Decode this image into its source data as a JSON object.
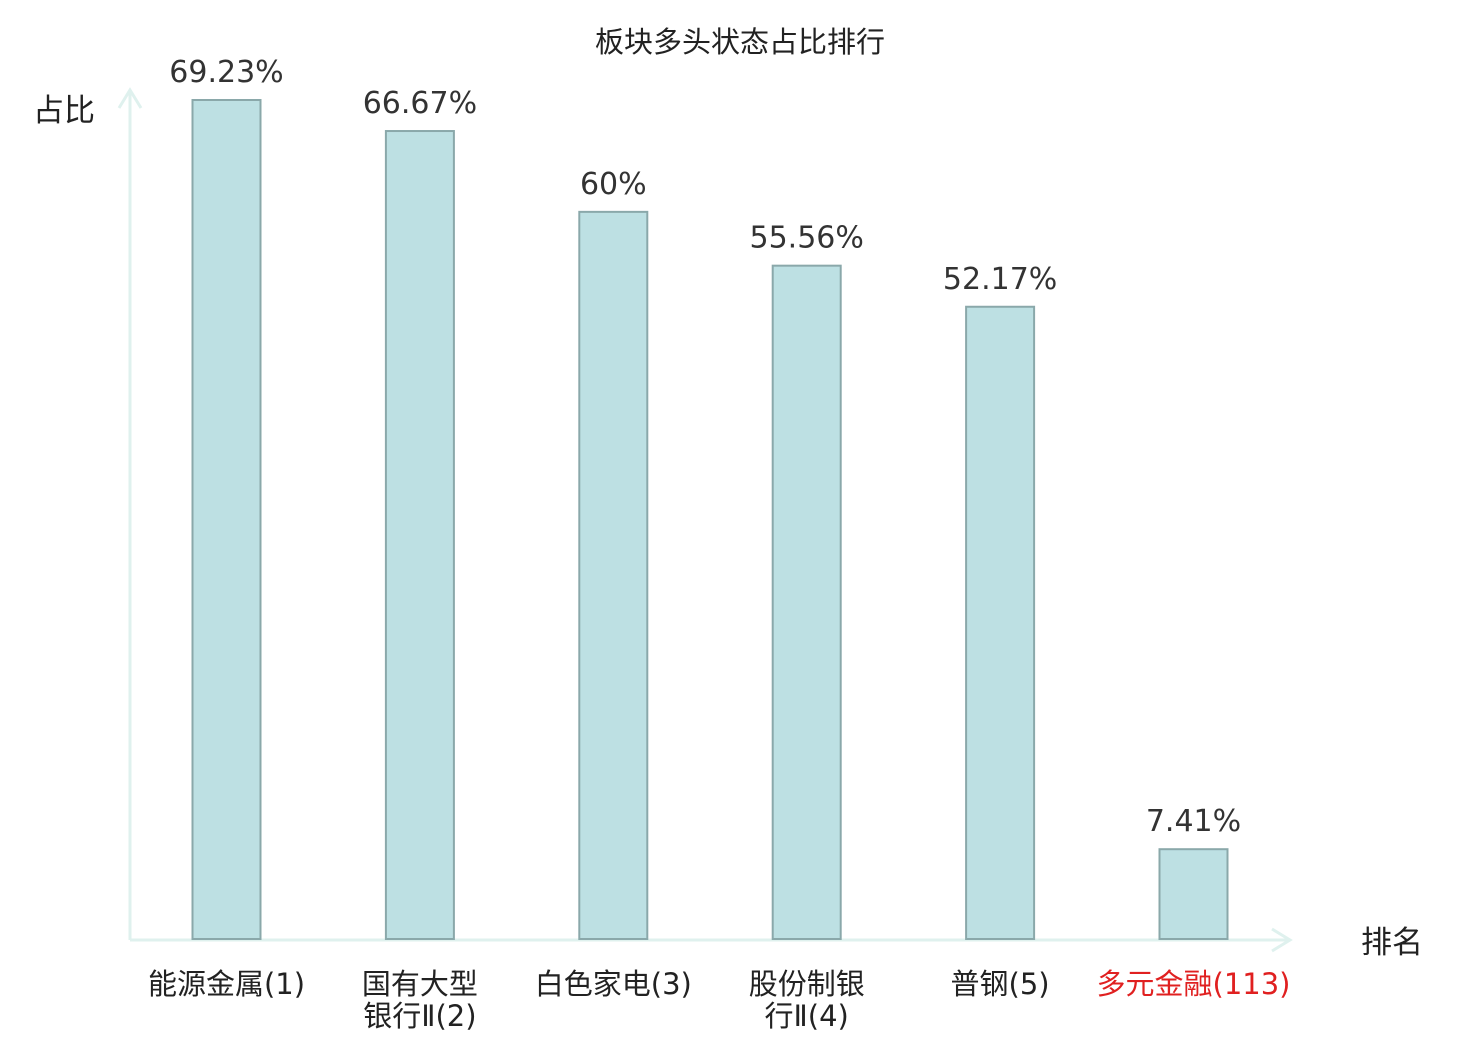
{
  "chart_data": {
    "type": "bar",
    "title": "板块多头状态占比排行",
    "ylabel": "占比",
    "xlabel": "排名",
    "ylim": [
      0,
      70
    ],
    "grid": false,
    "categories": [
      {
        "lines": [
          "能源金属(1)"
        ],
        "name": "能源金属",
        "rank": 1
      },
      {
        "lines": [
          "国有大型",
          "银行Ⅱ(2)"
        ],
        "name": "国有大型银行Ⅱ",
        "rank": 2
      },
      {
        "lines": [
          "白色家电(3)"
        ],
        "name": "白色家电",
        "rank": 3
      },
      {
        "lines": [
          "股份制银",
          "行Ⅱ(4)"
        ],
        "name": "股份制银行Ⅱ",
        "rank": 4
      },
      {
        "lines": [
          "普钢(5)"
        ],
        "name": "普钢",
        "rank": 5
      },
      {
        "lines": [
          "多元金融(113)"
        ],
        "name": "多元金融",
        "rank": 113
      }
    ],
    "values": [
      69.23,
      66.67,
      60,
      55.56,
      52.17,
      7.41
    ],
    "value_labels": [
      "69.23%",
      "66.67%",
      "60%",
      "55.56%",
      "52.17%",
      "7.41%"
    ],
    "highlight_index": 5,
    "colors": {
      "bar_fill": "#bde0e3",
      "bar_stroke": "#8aa8aa",
      "axis": "#dff1ee",
      "highlight_text": "#e02020",
      "text": "#222222"
    }
  }
}
